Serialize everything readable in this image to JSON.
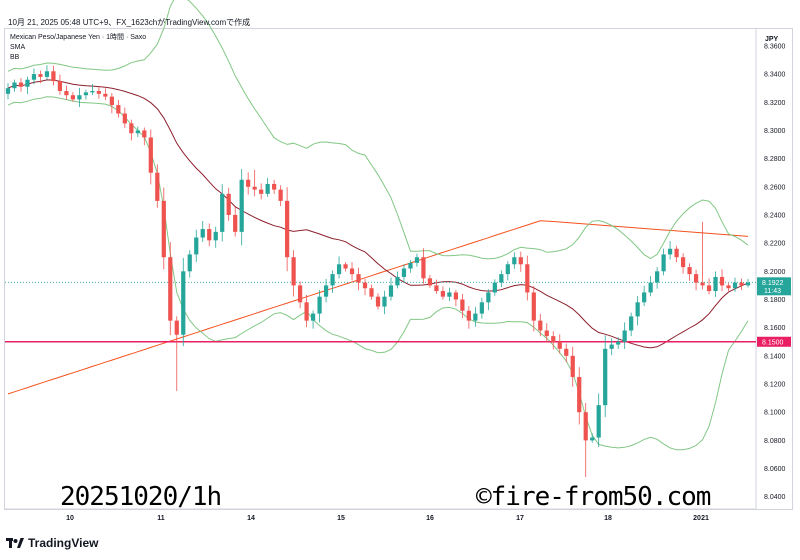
{
  "header": {
    "timestamp_line": "10月 21, 2025 05:48 UTC+9、FX_1623chがTradingView.comで作成"
  },
  "legend": {
    "symbol": "Mexican Peso/Japanese Yen · 1時間 · Saxo",
    "indicator_1": "SMA",
    "indicator_2": "BB"
  },
  "currency_label": "JPY",
  "watermarks": {
    "left": "20251020/1h",
    "right": "©fire-from50.com"
  },
  "footer": {
    "brand": "TradingView"
  },
  "colors": {
    "up": "#26a69a",
    "down": "#ef5350",
    "bb_band": "#81c784",
    "bb_basis": "#8d1f2d",
    "sma": "#f4511e",
    "hline": "#e91e63",
    "last_price_bg": "#26a69a"
  },
  "chart_data": {
    "type": "candlestick",
    "x_tick_labels": [
      "10",
      "11",
      "14",
      "15",
      "16",
      "17",
      "18",
      "20",
      "21"
    ],
    "y_tick_labels": [
      "8.3600",
      "8.3400",
      "8.3200",
      "8.3000",
      "8.2800",
      "8.2600",
      "8.2400",
      "8.2200",
      "8.2000",
      "8.1800",
      "8.1600",
      "8.1400",
      "8.1200",
      "8.1000",
      "8.0800",
      "8.0600",
      "8.0400"
    ],
    "ylim": [
      8.032,
      8.372
    ],
    "last_price": {
      "value": "8.1922",
      "countdown": "11:43"
    },
    "horizontal_line": {
      "value": "8.1500"
    },
    "close_approx": [
      8.33,
      8.334,
      8.331,
      8.336,
      8.34,
      8.338,
      8.342,
      8.335,
      8.328,
      8.325,
      8.322,
      8.325,
      8.327,
      8.328,
      8.326,
      8.324,
      8.318,
      8.312,
      8.305,
      8.298,
      8.3,
      8.295,
      8.27,
      8.25,
      8.21,
      8.165,
      8.155,
      8.2,
      8.212,
      8.224,
      8.23,
      8.222,
      8.228,
      8.255,
      8.24,
      8.228,
      8.265,
      8.26,
      8.258,
      8.255,
      8.262,
      8.258,
      8.25,
      8.21,
      8.19,
      8.178,
      8.165,
      8.17,
      8.182,
      8.19,
      8.198,
      8.205,
      8.202,
      8.198,
      8.192,
      8.188,
      8.182,
      8.175,
      8.182,
      8.19,
      8.196,
      8.202,
      8.206,
      8.21,
      8.195,
      8.19,
      8.186,
      8.182,
      8.185,
      8.18,
      8.172,
      8.165,
      8.17,
      8.178,
      8.185,
      8.192,
      8.198,
      8.205,
      8.21,
      8.205,
      8.185,
      8.165,
      8.158,
      8.154,
      8.15,
      8.145,
      8.14,
      8.125,
      8.1,
      8.08,
      8.082,
      8.105,
      8.145,
      8.148,
      8.15,
      8.158,
      8.168,
      8.178,
      8.185,
      8.192,
      8.2,
      8.212,
      8.216,
      8.21,
      8.203,
      8.198,
      8.192,
      8.19,
      8.186,
      8.196,
      8.19,
      8.188,
      8.192,
      8.19,
      8.192
    ],
    "indicators": [
      "SMA",
      "BB (upper, basis, lower)"
    ]
  }
}
